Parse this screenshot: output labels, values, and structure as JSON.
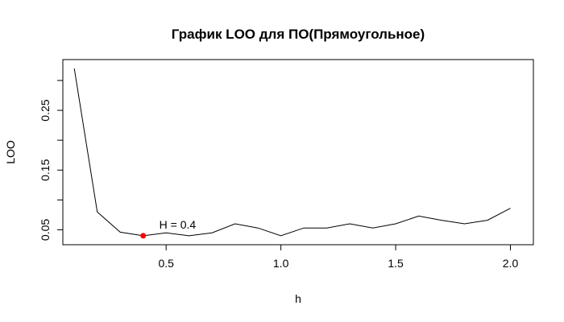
{
  "chart_data": {
    "type": "line",
    "title": "График LOO для ПО(Прямоугольное)",
    "xlabel": "h",
    "ylabel": "LOO",
    "xlim": [
      0.05,
      2.1
    ],
    "ylim": [
      0.025,
      0.335
    ],
    "x_ticks": [
      0.5,
      1.0,
      1.5,
      2.0
    ],
    "x_tick_labels": [
      "0.5",
      "1.0",
      "1.5",
      "2.0"
    ],
    "y_ticks": [
      0.05,
      0.1,
      0.15,
      0.2,
      0.25,
      0.3
    ],
    "y_tick_labels": [
      "0.05",
      "",
      "0.15",
      "",
      "0.25",
      ""
    ],
    "grid": false,
    "series": [
      {
        "color": "#000000",
        "x": [
          0.1,
          0.2,
          0.3,
          0.4,
          0.5,
          0.6,
          0.7,
          0.8,
          0.9,
          1.0,
          1.1,
          1.2,
          1.3,
          1.4,
          1.5,
          1.6,
          1.7,
          1.8,
          1.9,
          2.0
        ],
        "y": [
          0.32,
          0.08,
          0.046,
          0.04,
          0.045,
          0.04,
          0.045,
          0.06,
          0.053,
          0.04,
          0.053,
          0.053,
          0.06,
          0.053,
          0.06,
          0.073,
          0.066,
          0.06,
          0.066,
          0.086
        ]
      }
    ],
    "highlight": {
      "x": 0.4,
      "y": 0.04,
      "color": "#ff0000"
    },
    "annotation": {
      "text": "H = 0.4",
      "x": 0.47,
      "y": 0.052
    }
  }
}
